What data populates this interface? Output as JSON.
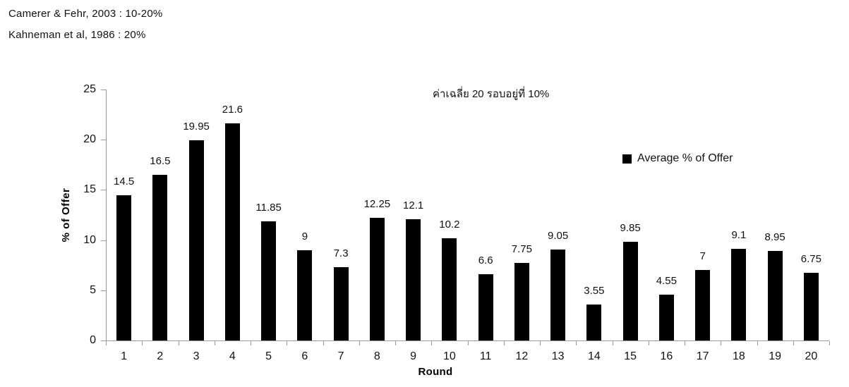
{
  "annotations": {
    "camerer": "Camerer & Fehr, 2003 : 10-20%",
    "kahneman": "Kahneman et al, 1986 : 20%"
  },
  "chart_data": {
    "type": "bar",
    "title": "",
    "categories": [
      "1",
      "2",
      "3",
      "4",
      "5",
      "6",
      "7",
      "8",
      "9",
      "10",
      "11",
      "12",
      "13",
      "14",
      "15",
      "16",
      "17",
      "18",
      "19",
      "20"
    ],
    "series": [
      {
        "name": "Average % of Offer",
        "values": [
          14.5,
          16.5,
          19.95,
          21.6,
          11.85,
          9,
          7.3,
          12.25,
          12.1,
          10.2,
          6.6,
          7.75,
          9.05,
          3.55,
          9.85,
          4.55,
          7,
          9.1,
          8.95,
          6.75
        ]
      }
    ],
    "data_labels": [
      "14.5",
      "16.5",
      "19.95",
      "21.6",
      "11.85",
      "9",
      "7.3",
      "12.25",
      "12.1",
      "10.2",
      "6.6",
      "7.75",
      "9.05",
      "3.55",
      "9.85",
      "4.55",
      "7",
      "9.1",
      "8.95",
      "6.75"
    ],
    "xlabel": "Round",
    "ylabel": "% of Offer",
    "ylim": [
      0,
      25
    ],
    "yticks": [
      0,
      5,
      10,
      15,
      20,
      25
    ],
    "grid": false,
    "annotation": "ค่าเฉลี่ย 20 รอบอยู่ที่ 10%",
    "legend": {
      "label": "Average % of Offer",
      "position": "right-middle",
      "marker_color": "#000000"
    },
    "bar_color": "#000000",
    "axis_color": "#999999",
    "label_color": "#111111"
  }
}
